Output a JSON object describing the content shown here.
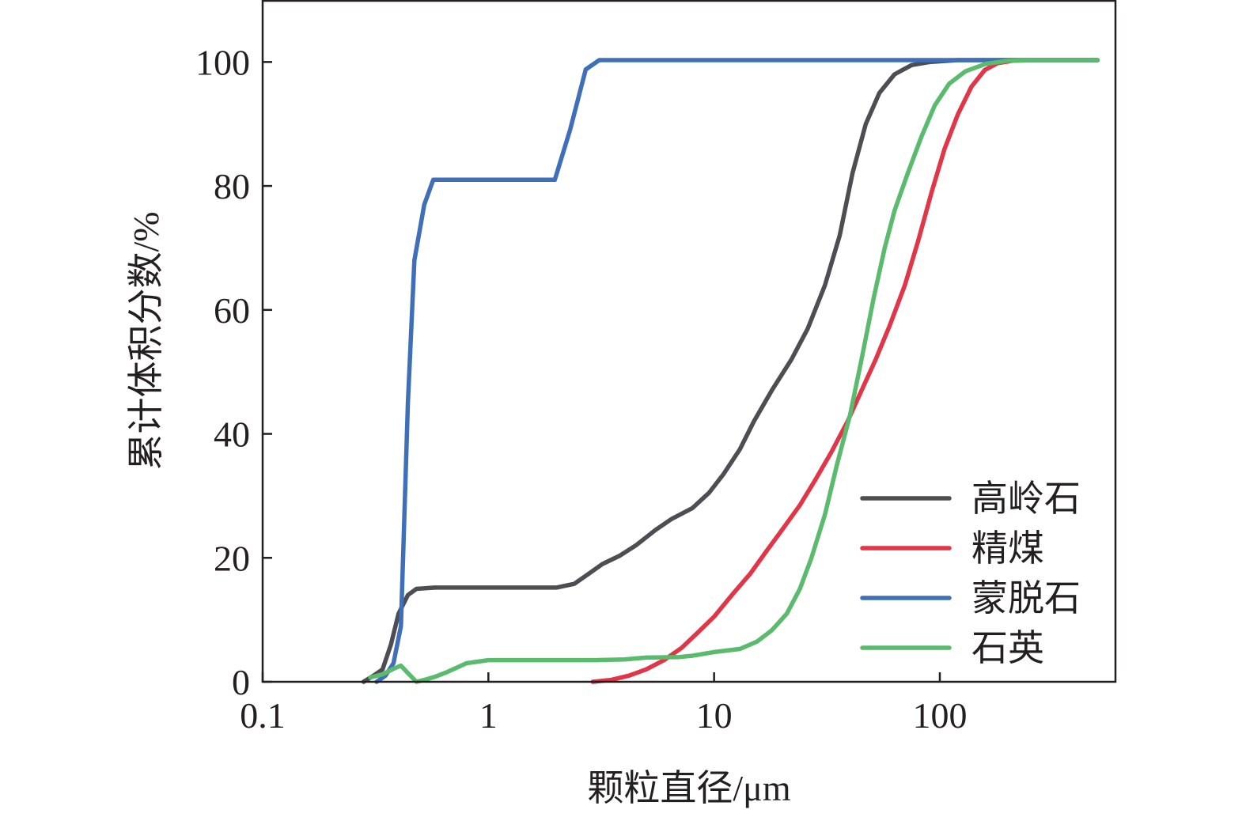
{
  "chart_data": {
    "type": "line",
    "xlabel": "颗粒直径/μm",
    "ylabel": "累计体积分数/%",
    "xscale": "log",
    "xlim": [
      0.1,
      600
    ],
    "ylim": [
      0,
      110
    ],
    "x_ticks": [
      {
        "value": 0.1,
        "label": "0.1"
      },
      {
        "value": 1,
        "label": "1"
      },
      {
        "value": 10,
        "label": "10"
      },
      {
        "value": 100,
        "label": "100"
      }
    ],
    "y_ticks": [
      {
        "value": 0,
        "label": "0"
      },
      {
        "value": 20,
        "label": "20"
      },
      {
        "value": 40,
        "label": "40"
      },
      {
        "value": 60,
        "label": "60"
      },
      {
        "value": 80,
        "label": "80"
      },
      {
        "value": 100,
        "label": "100"
      }
    ],
    "grid": false,
    "legend_position": "bottom-right",
    "series": [
      {
        "name": "高岭石",
        "color": "#4d4d53",
        "points": [
          [
            0.28,
            0
          ],
          [
            0.31,
            1
          ],
          [
            0.34,
            2
          ],
          [
            0.37,
            6
          ],
          [
            0.4,
            11
          ],
          [
            0.44,
            14
          ],
          [
            0.48,
            15
          ],
          [
            0.58,
            15.2
          ],
          [
            0.8,
            15.2
          ],
          [
            1.0,
            15.2
          ],
          [
            1.5,
            15.2
          ],
          [
            2.0,
            15.2
          ],
          [
            2.4,
            15.8
          ],
          [
            2.8,
            17.5
          ],
          [
            3.2,
            19
          ],
          [
            3.8,
            20.3
          ],
          [
            4.5,
            22
          ],
          [
            5.5,
            24.5
          ],
          [
            6.5,
            26.3
          ],
          [
            8,
            28
          ],
          [
            9.5,
            30.5
          ],
          [
            11,
            33.5
          ],
          [
            13,
            37.5
          ],
          [
            15,
            42
          ],
          [
            18,
            47
          ],
          [
            22,
            52
          ],
          [
            26,
            57
          ],
          [
            31,
            64
          ],
          [
            36,
            72
          ],
          [
            41,
            82
          ],
          [
            47,
            90
          ],
          [
            54,
            95
          ],
          [
            63,
            98
          ],
          [
            75,
            99.5
          ],
          [
            90,
            100
          ],
          [
            120,
            100.3
          ],
          [
            200,
            100.3
          ],
          [
            500,
            100.3
          ]
        ]
      },
      {
        "name": "精煤",
        "color": "#e03648",
        "points": [
          [
            2.9,
            0
          ],
          [
            3.5,
            0.3
          ],
          [
            4.2,
            1
          ],
          [
            5,
            2
          ],
          [
            6,
            3.5
          ],
          [
            7.2,
            5.5
          ],
          [
            8.5,
            8
          ],
          [
            10,
            10.5
          ],
          [
            12,
            14
          ],
          [
            14.5,
            17.5
          ],
          [
            17,
            21
          ],
          [
            20,
            24.5
          ],
          [
            24,
            28.5
          ],
          [
            28,
            32.5
          ],
          [
            33,
            37
          ],
          [
            39,
            42
          ],
          [
            45,
            47
          ],
          [
            52,
            52
          ],
          [
            60,
            57.5
          ],
          [
            70,
            64
          ],
          [
            80,
            71
          ],
          [
            92,
            79
          ],
          [
            105,
            86
          ],
          [
            120,
            91.5
          ],
          [
            138,
            96
          ],
          [
            158,
            98.7
          ],
          [
            180,
            99.8
          ],
          [
            210,
            100.2
          ],
          [
            260,
            100.3
          ],
          [
            500,
            100.3
          ]
        ]
      },
      {
        "name": "蒙脱石",
        "color": "#3f6fb8",
        "points": [
          [
            0.32,
            0
          ],
          [
            0.35,
            1
          ],
          [
            0.38,
            3
          ],
          [
            0.41,
            9
          ],
          [
            0.44,
            45
          ],
          [
            0.47,
            68
          ],
          [
            0.52,
            77
          ],
          [
            0.57,
            81
          ],
          [
            0.7,
            81
          ],
          [
            1.0,
            81
          ],
          [
            1.5,
            81
          ],
          [
            1.97,
            81
          ],
          [
            2.3,
            89
          ],
          [
            2.7,
            98.8
          ],
          [
            3.1,
            100.3
          ],
          [
            5,
            100.3
          ],
          [
            20,
            100.3
          ],
          [
            100,
            100.3
          ],
          [
            500,
            100.3
          ]
        ]
      },
      {
        "name": "石英",
        "color": "#5aba6e",
        "points": [
          [
            0.3,
            0.7
          ],
          [
            0.34,
            1.2
          ],
          [
            0.38,
            2.1
          ],
          [
            0.41,
            2.6
          ],
          [
            0.44,
            1.4
          ],
          [
            0.48,
            0
          ],
          [
            0.52,
            0.3
          ],
          [
            0.58,
            0.8
          ],
          [
            0.65,
            1.5
          ],
          [
            0.8,
            3
          ],
          [
            1.0,
            3.5
          ],
          [
            1.5,
            3.5
          ],
          [
            2,
            3.5
          ],
          [
            3,
            3.5
          ],
          [
            4,
            3.6
          ],
          [
            5,
            3.9
          ],
          [
            7,
            4
          ],
          [
            8,
            4.2
          ],
          [
            10,
            4.8
          ],
          [
            13,
            5.3
          ],
          [
            15.5,
            6.5
          ],
          [
            18,
            8.3
          ],
          [
            21,
            11
          ],
          [
            24,
            15
          ],
          [
            27,
            20
          ],
          [
            31,
            27
          ],
          [
            35,
            35
          ],
          [
            40,
            43
          ],
          [
            45,
            52
          ],
          [
            51,
            62
          ],
          [
            57,
            70
          ],
          [
            63,
            76
          ],
          [
            72,
            82
          ],
          [
            83,
            88
          ],
          [
            95,
            93
          ],
          [
            110,
            96.5
          ],
          [
            130,
            98.5
          ],
          [
            160,
            99.7
          ],
          [
            200,
            100.2
          ],
          [
            250,
            100.3
          ],
          [
            500,
            100.3
          ]
        ]
      }
    ]
  }
}
